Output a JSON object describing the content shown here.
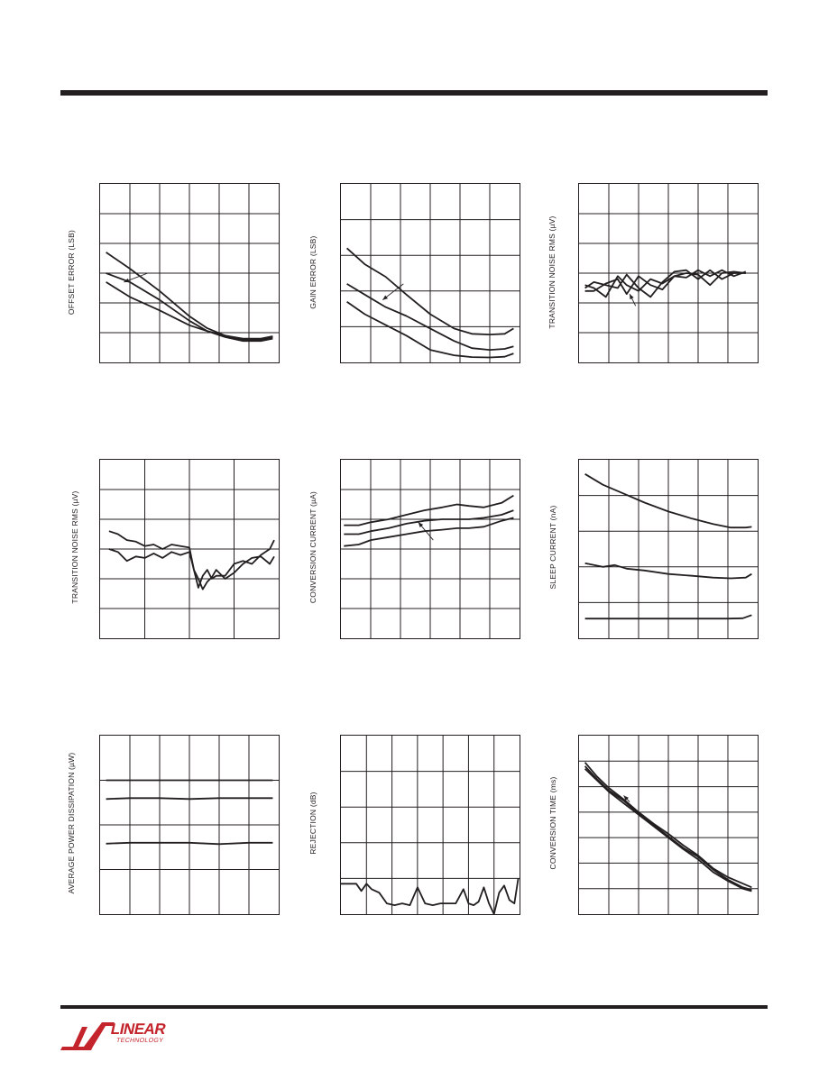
{
  "logo": {
    "brand": "LINEAR",
    "sub": "TECHNOLOGY",
    "color": "#c4242b"
  },
  "colors": {
    "ink": "#231f20",
    "grid": "#231f20"
  },
  "chart_data": [
    {
      "id": "c1",
      "type": "line",
      "ylabel": "OFFSET ERROR (LSB)",
      "xdiv": 6,
      "ydiv": 6,
      "xlim": [
        0,
        6
      ],
      "ylim": [
        0,
        6
      ],
      "series": [
        {
          "x": [
            0.2,
            1,
            2,
            3,
            3.6,
            4.2,
            4.8,
            5.4,
            5.8
          ],
          "y": [
            3.7,
            3.15,
            2.4,
            1.55,
            1.15,
            0.9,
            0.75,
            0.75,
            0.85
          ]
        },
        {
          "x": [
            0.2,
            1,
            2,
            3,
            3.6,
            4.2,
            4.8,
            5.4,
            5.8
          ],
          "y": [
            3.0,
            2.7,
            2.1,
            1.4,
            1.05,
            0.85,
            0.72,
            0.72,
            0.8
          ]
        },
        {
          "x": [
            0.2,
            1,
            2,
            3,
            3.6,
            4.2,
            4.8,
            5.4,
            5.8
          ],
          "y": [
            2.7,
            2.2,
            1.75,
            1.25,
            1.05,
            0.9,
            0.8,
            0.8,
            0.88
          ]
        }
      ],
      "annotations": [
        {
          "type": "arrow",
          "x1": 1.6,
          "y1": 3.0,
          "x2": 0.8,
          "y2": 2.7
        }
      ]
    },
    {
      "id": "c2",
      "type": "line",
      "ylabel": "GAIN ERROR (LSB)",
      "xdiv": 6,
      "ydiv": 5,
      "xlim": [
        0,
        6
      ],
      "ylim": [
        0,
        5
      ],
      "series": [
        {
          "x": [
            0.2,
            0.8,
            1.5,
            2.2,
            3,
            3.8,
            4.4,
            5,
            5.5,
            5.8
          ],
          "y": [
            3.2,
            2.75,
            2.4,
            1.9,
            1.35,
            0.95,
            0.8,
            0.78,
            0.8,
            0.95
          ]
        },
        {
          "x": [
            0.2,
            0.8,
            1.5,
            2.2,
            3,
            3.8,
            4.4,
            5,
            5.5,
            5.8
          ],
          "y": [
            2.2,
            1.9,
            1.55,
            1.3,
            0.95,
            0.6,
            0.4,
            0.35,
            0.38,
            0.45
          ]
        },
        {
          "x": [
            0.2,
            0.8,
            1.5,
            2.2,
            3,
            3.8,
            4.4,
            5,
            5.5,
            5.8
          ],
          "y": [
            1.7,
            1.35,
            1.05,
            0.75,
            0.35,
            0.2,
            0.15,
            0.14,
            0.16,
            0.25
          ]
        }
      ],
      "annotations": [
        {
          "type": "arrow",
          "x1": 2.1,
          "y1": 2.2,
          "x2": 1.4,
          "y2": 1.75
        }
      ]
    },
    {
      "id": "c3",
      "type": "line",
      "ylabel": "TRANSITION NOISE RMS (µV)",
      "xdiv": 6,
      "ydiv": 6,
      "xlim": [
        0,
        6
      ],
      "ylim": [
        0,
        6
      ],
      "series": [
        {
          "x": [
            0.2,
            0.5,
            0.9,
            1.3,
            1.6,
            2.0,
            2.4,
            2.8,
            3.2,
            3.6,
            4.0,
            4.4,
            4.8,
            5.2,
            5.6
          ],
          "y": [
            2.6,
            2.5,
            2.2,
            2.9,
            2.6,
            2.4,
            2.8,
            2.65,
            2.9,
            3.0,
            2.95,
            2.6,
            3.0,
            3.05,
            3.0
          ]
        },
        {
          "x": [
            0.2,
            0.5,
            0.9,
            1.3,
            1.6,
            2.0,
            2.4,
            2.8,
            3.2,
            3.6,
            4.0,
            4.4,
            4.8,
            5.2,
            5.6
          ],
          "y": [
            2.5,
            2.7,
            2.6,
            2.5,
            2.95,
            2.5,
            2.2,
            2.7,
            3.05,
            3.1,
            2.8,
            3.1,
            2.8,
            3.0,
            3.0
          ]
        },
        {
          "x": [
            0.2,
            0.5,
            0.9,
            1.3,
            1.6,
            2.0,
            2.4,
            2.8,
            3.2,
            3.6,
            4.0,
            4.4,
            4.8,
            5.2,
            5.6
          ],
          "y": [
            2.4,
            2.4,
            2.65,
            2.8,
            2.3,
            2.9,
            2.6,
            2.45,
            2.9,
            2.85,
            3.1,
            2.9,
            3.1,
            2.9,
            3.05
          ]
        }
      ],
      "annotations": [
        {
          "type": "arrow",
          "x1": 1.9,
          "y1": 1.9,
          "x2": 1.7,
          "y2": 2.3
        }
      ]
    },
    {
      "id": "c4",
      "type": "line",
      "ylabel": "TRANSITION NOISE RMS (µV)",
      "xdiv": 4,
      "ydiv": 6,
      "xlim": [
        0,
        4
      ],
      "ylim": [
        0,
        6
      ],
      "series": [
        {
          "x": [
            0.2,
            0.4,
            0.6,
            0.8,
            1.0,
            1.2,
            1.4,
            1.6,
            1.8,
            2.0,
            2.1,
            2.2,
            2.3,
            2.4,
            2.5,
            2.6,
            2.8,
            3.0,
            3.2,
            3.4,
            3.6,
            3.8,
            3.9
          ],
          "y": [
            3.6,
            3.5,
            3.3,
            3.25,
            3.1,
            3.15,
            3.0,
            3.15,
            3.1,
            3.05,
            2.3,
            1.7,
            2.1,
            2.3,
            2.0,
            2.1,
            2.1,
            2.5,
            2.6,
            2.5,
            2.8,
            3.0,
            3.3
          ]
        },
        {
          "x": [
            0.2,
            0.4,
            0.6,
            0.8,
            1.0,
            1.2,
            1.4,
            1.6,
            1.8,
            2.0,
            2.1,
            2.2,
            2.3,
            2.4,
            2.5,
            2.6,
            2.8,
            3.0,
            3.2,
            3.4,
            3.6,
            3.8,
            3.9
          ],
          "y": [
            3.0,
            2.9,
            2.6,
            2.75,
            2.7,
            2.85,
            2.7,
            2.9,
            2.8,
            2.9,
            2.3,
            2.0,
            1.65,
            1.9,
            2.05,
            2.3,
            2.0,
            2.2,
            2.5,
            2.7,
            2.75,
            2.5,
            2.75
          ]
        }
      ],
      "annotations": []
    },
    {
      "id": "c5",
      "type": "line",
      "ylabel": "CONVERSION CURRENT (µA)",
      "xdiv": 6,
      "ydiv": 6,
      "xlim": [
        0,
        6
      ],
      "ylim": [
        0,
        6
      ],
      "series": [
        {
          "x": [
            0.1,
            0.6,
            1.0,
            1.6,
            2.2,
            2.8,
            3.4,
            3.9,
            4.3,
            4.8,
            5.4,
            5.8
          ],
          "y": [
            3.8,
            3.8,
            3.9,
            4.0,
            4.15,
            4.3,
            4.4,
            4.5,
            4.45,
            4.4,
            4.55,
            4.8
          ]
        },
        {
          "x": [
            0.1,
            0.6,
            1.0,
            1.6,
            2.2,
            2.8,
            3.4,
            3.9,
            4.3,
            4.8,
            5.4,
            5.8
          ],
          "y": [
            3.5,
            3.5,
            3.6,
            3.7,
            3.85,
            3.95,
            4.0,
            4.0,
            4.0,
            4.05,
            4.15,
            4.3
          ]
        },
        {
          "x": [
            0.1,
            0.6,
            1.0,
            1.6,
            2.2,
            2.8,
            3.4,
            3.9,
            4.3,
            4.8,
            5.4,
            5.8
          ],
          "y": [
            3.1,
            3.15,
            3.3,
            3.4,
            3.5,
            3.6,
            3.65,
            3.7,
            3.7,
            3.75,
            3.95,
            4.05
          ]
        }
      ],
      "annotations": [
        {
          "type": "arrow",
          "x1": 3.1,
          "y1": 3.3,
          "x2": 2.6,
          "y2": 3.9
        }
      ]
    },
    {
      "id": "c6",
      "type": "line",
      "ylabel": "SLEEP CURRENT (nA)",
      "xdiv": 6,
      "ydiv": 5,
      "xlim": [
        0,
        6
      ],
      "ylim": [
        0,
        5
      ],
      "series": [
        {
          "x": [
            0.2,
            0.8,
            1.5,
            2.2,
            3.0,
            3.8,
            4.5,
            5.1,
            5.6,
            5.8
          ],
          "y": [
            4.6,
            4.3,
            4.05,
            3.8,
            3.55,
            3.35,
            3.2,
            3.1,
            3.1,
            3.12
          ]
        },
        {
          "x": [
            0.2,
            0.8,
            1.2,
            1.6,
            2.2,
            3.0,
            3.8,
            4.5,
            5.1,
            5.6,
            5.8
          ],
          "y": [
            2.1,
            2.0,
            2.05,
            1.95,
            1.9,
            1.8,
            1.75,
            1.7,
            1.68,
            1.7,
            1.8
          ]
        },
        {
          "x": [
            0.2,
            1.0,
            2.0,
            3.0,
            4.0,
            5.0,
            5.5,
            5.8
          ],
          "y": [
            0.55,
            0.55,
            0.55,
            0.55,
            0.55,
            0.55,
            0.56,
            0.65
          ]
        }
      ],
      "annotations": []
    },
    {
      "id": "c7",
      "type": "line",
      "ylabel": "AVERAGE POWER DISSIPATION (µW)",
      "xdiv": 6,
      "ydiv": 4,
      "xlim": [
        0,
        6
      ],
      "ylim": [
        0,
        4
      ],
      "series": [
        {
          "x": [
            0.2,
            1,
            2,
            3,
            4,
            5,
            5.8
          ],
          "y": [
            3.0,
            3.0,
            3.0,
            3.0,
            3.0,
            3.0,
            3.0
          ]
        },
        {
          "x": [
            0.2,
            1,
            2,
            3,
            4,
            5,
            5.8
          ],
          "y": [
            2.58,
            2.6,
            2.6,
            2.58,
            2.6,
            2.6,
            2.6
          ]
        },
        {
          "x": [
            0.2,
            1,
            2,
            3,
            4,
            5,
            5.8
          ],
          "y": [
            1.58,
            1.6,
            1.6,
            1.6,
            1.57,
            1.6,
            1.6
          ]
        }
      ],
      "annotations": []
    },
    {
      "id": "c8",
      "type": "line",
      "ylabel": "REJECTION (dB)",
      "xdiv": 7,
      "ydiv": 5,
      "xlim": [
        0,
        7
      ],
      "ylim": [
        0,
        5
      ],
      "series": [
        {
          "x": [
            0,
            0.3,
            0.6,
            0.8,
            1.0,
            1.2,
            1.5,
            1.8,
            2.1,
            2.4,
            2.7,
            3.0,
            3.3,
            3.6,
            3.9,
            4.2,
            4.5,
            4.8,
            5.0,
            5.2,
            5.4,
            5.6,
            5.8,
            6.0,
            6.2,
            6.4,
            6.6,
            6.8,
            6.95
          ],
          "y": [
            0.85,
            0.85,
            0.85,
            0.65,
            0.85,
            0.7,
            0.6,
            0.3,
            0.25,
            0.3,
            0.25,
            0.75,
            0.3,
            0.25,
            0.3,
            0.3,
            0.3,
            0.7,
            0.3,
            0.25,
            0.35,
            0.75,
            0.3,
            0.0,
            0.6,
            0.8,
            0.4,
            0.3,
            1.0
          ]
        }
      ],
      "annotations": []
    },
    {
      "id": "c9",
      "type": "line",
      "ylabel": "CONVERSION TIME (ms)",
      "xdiv": 6,
      "ydiv": 7,
      "xlim": [
        0,
        6
      ],
      "ylim": [
        0,
        7
      ],
      "series": [
        {
          "x": [
            0.2,
            0.6,
            1.0,
            1.5,
            2.0,
            2.5,
            3.0,
            3.5,
            4.0,
            4.5,
            5.0,
            5.5,
            5.8
          ],
          "y": [
            5.95,
            5.4,
            4.95,
            4.5,
            4.0,
            3.55,
            3.15,
            2.7,
            2.3,
            1.8,
            1.45,
            1.2,
            1.05
          ]
        },
        {
          "x": [
            0.2,
            0.6,
            1.0,
            1.5,
            2.0,
            2.5,
            3.0,
            3.5,
            4.0,
            4.5,
            5.0,
            5.5,
            5.8
          ],
          "y": [
            5.8,
            5.3,
            4.85,
            4.45,
            3.95,
            3.5,
            3.05,
            2.6,
            2.25,
            1.75,
            1.35,
            1.05,
            0.95
          ]
        },
        {
          "x": [
            0.2,
            0.6,
            1.0,
            1.5,
            2.0,
            2.5,
            3.0,
            3.5,
            4.0,
            4.5,
            5.0,
            5.5,
            5.8
          ],
          "y": [
            5.7,
            5.25,
            4.8,
            4.35,
            3.9,
            3.45,
            3.0,
            2.55,
            2.15,
            1.65,
            1.3,
            1.0,
            0.9
          ]
        }
      ],
      "annotations": [
        {
          "type": "arrow",
          "x1": 1.7,
          "y1": 4.4,
          "x2": 1.5,
          "y2": 4.65
        }
      ]
    }
  ]
}
